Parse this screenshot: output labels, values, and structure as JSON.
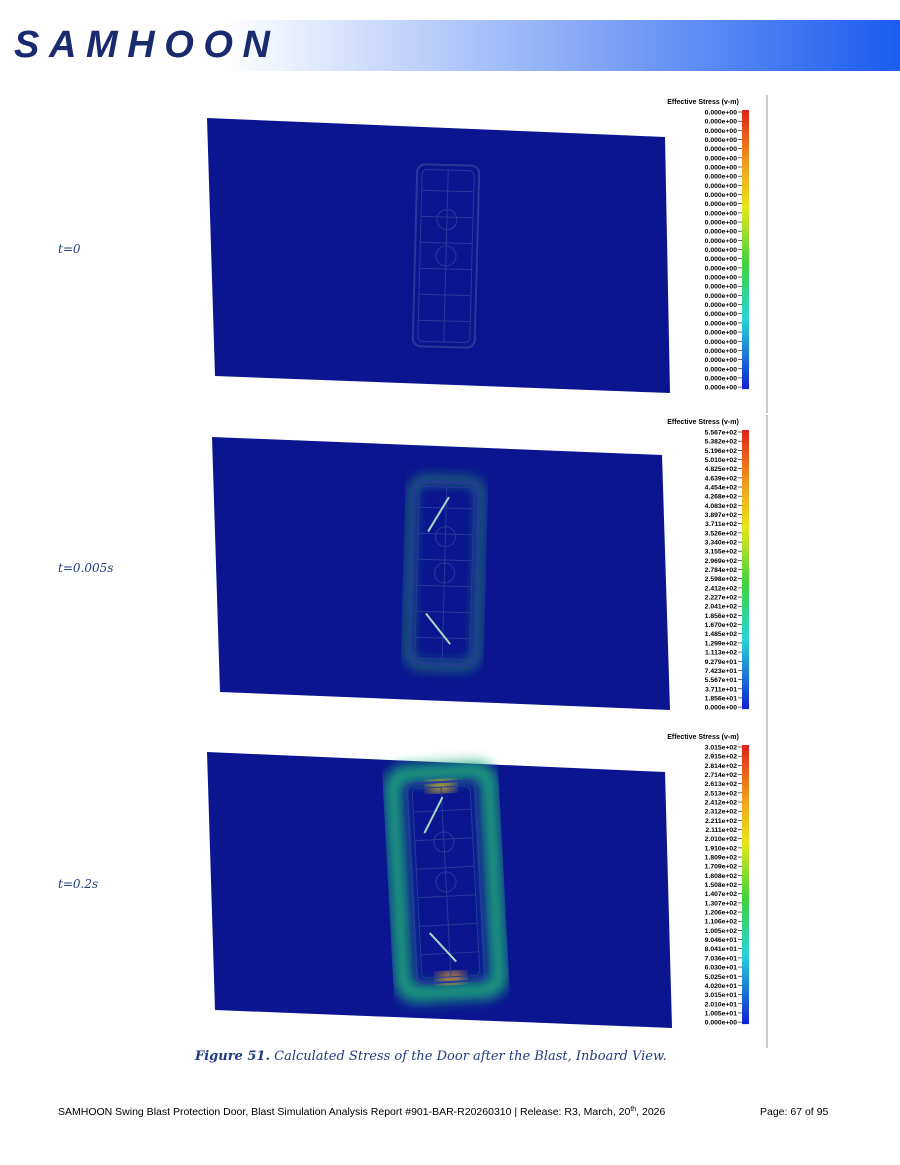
{
  "header": {
    "logo": "SAMHOON"
  },
  "panels": [
    {
      "label": "t=0",
      "legend_title": "Effective Stress (v-m)",
      "legend_labels": [
        "0.000e+00",
        "0.000e+00",
        "0.000e+00",
        "0.000e+00",
        "0.000e+00",
        "0.000e+00",
        "0.000e+00",
        "0.000e+00",
        "0.000e+00",
        "0.000e+00",
        "0.000e+00",
        "0.000e+00",
        "0.000e+00",
        "0.000e+00",
        "0.000e+00",
        "0.000e+00",
        "0.000e+00",
        "0.000e+00",
        "0.000e+00",
        "0.000e+00",
        "0.000e+00",
        "0.000e+00",
        "0.000e+00",
        "0.000e+00",
        "0.000e+00",
        "0.000e+00",
        "0.000e+00",
        "0.000e+00",
        "0.000e+00",
        "0.000e+00",
        "0.000e+00"
      ]
    },
    {
      "label": "t=0.005s",
      "legend_title": "Effective Stress (v-m)",
      "legend_labels": [
        "5.567e+02",
        "5.382e+02",
        "5.196e+02",
        "5.010e+02",
        "4.825e+02",
        "4.639e+02",
        "4.454e+02",
        "4.268e+02",
        "4.083e+02",
        "3.897e+02",
        "3.711e+02",
        "3.526e+02",
        "3.340e+02",
        "3.155e+02",
        "2.969e+02",
        "2.784e+02",
        "2.598e+02",
        "2.412e+02",
        "2.227e+02",
        "2.041e+02",
        "1.856e+02",
        "1.670e+02",
        "1.485e+02",
        "1.299e+02",
        "1.113e+02",
        "9.279e+01",
        "7.423e+01",
        "5.567e+01",
        "3.711e+01",
        "1.856e+01",
        "0.000e+00"
      ]
    },
    {
      "label": "t=0.2s",
      "legend_title": "Effective Stress (v-m)",
      "legend_labels": [
        "3.015e+02",
        "2.915e+02",
        "2.814e+02",
        "2.714e+02",
        "2.613e+02",
        "2.513e+02",
        "2.412e+02",
        "2.312e+02",
        "2.211e+02",
        "2.111e+02",
        "2.010e+02",
        "1.910e+02",
        "1.809e+02",
        "1.709e+02",
        "1.608e+02",
        "1.508e+02",
        "1.407e+02",
        "1.307e+02",
        "1.206e+02",
        "1.106e+02",
        "1.005e+02",
        "9.046e+01",
        "8.041e+01",
        "7.036e+01",
        "6.030e+01",
        "5.025e+01",
        "4.020e+01",
        "3.015e+01",
        "2.010e+01",
        "1.005e+01",
        "0.000e+00"
      ]
    }
  ],
  "caption": {
    "number": "Figure 51.",
    "text": "Calculated Stress of the Door after the Blast, Inboard View."
  },
  "footer": {
    "text": "SAMHOON Swing Blast Protection Door, Blast Simulation Analysis Report #901-BAR-R20260310 | Release: R3, March, 20",
    "superscript": "th",
    "text_end": ", 2026",
    "page": "Page:  67 of 95"
  }
}
